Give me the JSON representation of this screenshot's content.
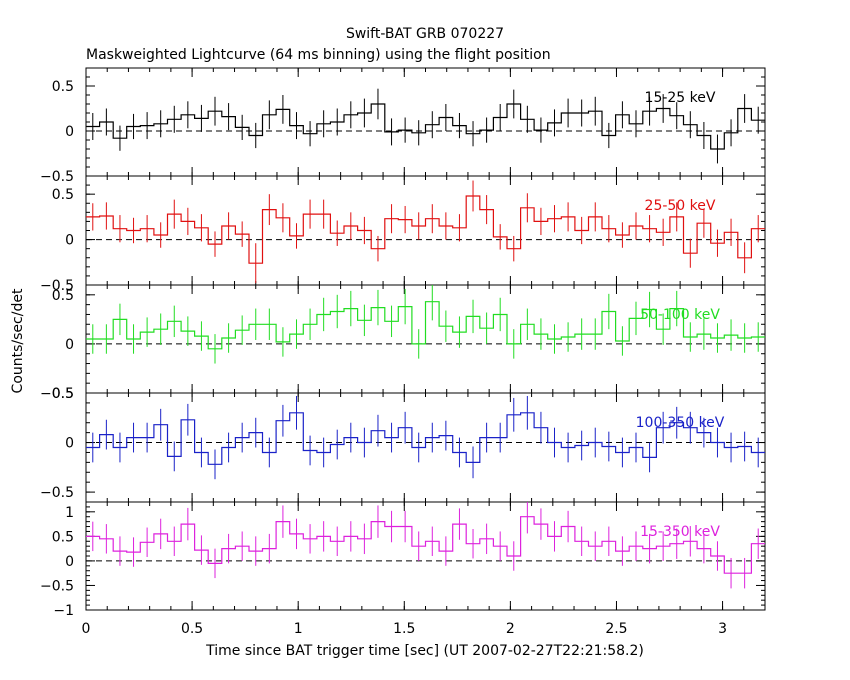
{
  "title": "Swift-BAT GRB 070227",
  "subtitle": "Maskweighted Lightcurve (64 ms binning) using the flight position",
  "xlabel": "Time since BAT trigger time [sec] (UT 2007-02-27T22:21:58.2)",
  "ylabel": "Counts/sec/det",
  "chart_data": {
    "type": "line",
    "drawstyle": "steps-mid",
    "error_bars": true,
    "x_step": 0.064,
    "xlim": [
      0,
      3.2
    ],
    "x_ticks": [
      0,
      0.5,
      1,
      1.5,
      2,
      2.5,
      3
    ],
    "x_tick_labels": [
      "0",
      "0.5",
      "1",
      "1.5",
      "2",
      "2.5",
      "3"
    ],
    "zero_line": "dashed",
    "panels": [
      {
        "name": "15-25 keV",
        "color": "#000000",
        "ylim": [
          -0.5,
          0.7
        ],
        "y_ticks": [
          -0.5,
          0,
          0.5
        ],
        "y_tick_labels": [
          "−0.5",
          "0",
          "0.5"
        ],
        "x": [
          0.032,
          0.096,
          0.16,
          0.224,
          0.288,
          0.352,
          0.416,
          0.48,
          0.544,
          0.608,
          0.672,
          0.736,
          0.8,
          0.864,
          0.928,
          0.992,
          1.056,
          1.12,
          1.184,
          1.248,
          1.312,
          1.376,
          1.44,
          1.504,
          1.568,
          1.632,
          1.696,
          1.76,
          1.824,
          1.888,
          1.952,
          2.016,
          2.08,
          2.144,
          2.208,
          2.272,
          2.336,
          2.4,
          2.464,
          2.528,
          2.592,
          2.656,
          2.72,
          2.784,
          2.848,
          2.912,
          2.976,
          3.04,
          3.104,
          3.168
        ],
        "values": [
          0.05,
          0.1,
          -0.08,
          0.05,
          0.06,
          0.08,
          0.13,
          0.18,
          0.14,
          0.22,
          0.16,
          0.04,
          -0.05,
          0.18,
          0.24,
          0.06,
          -0.03,
          0.08,
          0.1,
          0.18,
          0.2,
          0.3,
          -0.01,
          0.01,
          -0.02,
          0.07,
          0.15,
          0.06,
          -0.03,
          0.01,
          0.15,
          0.3,
          0.13,
          0.01,
          0.09,
          0.2,
          0.2,
          0.22,
          -0.05,
          0.18,
          0.08,
          0.22,
          0.25,
          0.17,
          0.07,
          -0.05,
          -0.2,
          -0.02,
          0.25,
          0.12
        ],
        "errors": [
          0.15,
          0.15,
          0.14,
          0.14,
          0.15,
          0.15,
          0.15,
          0.15,
          0.15,
          0.16,
          0.15,
          0.14,
          0.14,
          0.16,
          0.16,
          0.15,
          0.14,
          0.15,
          0.15,
          0.15,
          0.16,
          0.17,
          0.15,
          0.14,
          0.14,
          0.15,
          0.15,
          0.14,
          0.14,
          0.14,
          0.15,
          0.16,
          0.15,
          0.14,
          0.15,
          0.16,
          0.15,
          0.16,
          0.14,
          0.15,
          0.15,
          0.16,
          0.16,
          0.15,
          0.15,
          0.15,
          0.16,
          0.15,
          0.16,
          0.15
        ]
      },
      {
        "name": "25-50 keV",
        "color": "#e01010",
        "ylim": [
          -0.5,
          0.7
        ],
        "y_ticks": [
          -0.5,
          0,
          0.5
        ],
        "y_tick_labels": [
          "−0.5",
          "0",
          "0.5"
        ],
        "x": [
          0.032,
          0.096,
          0.16,
          0.224,
          0.288,
          0.352,
          0.416,
          0.48,
          0.544,
          0.608,
          0.672,
          0.736,
          0.8,
          0.864,
          0.928,
          0.992,
          1.056,
          1.12,
          1.184,
          1.248,
          1.312,
          1.376,
          1.44,
          1.504,
          1.568,
          1.632,
          1.696,
          1.76,
          1.824,
          1.888,
          1.952,
          2.016,
          2.08,
          2.144,
          2.208,
          2.272,
          2.336,
          2.4,
          2.464,
          2.528,
          2.592,
          2.656,
          2.72,
          2.784,
          2.848,
          2.912,
          2.976,
          3.04,
          3.104,
          3.168
        ],
        "values": [
          0.25,
          0.26,
          0.12,
          0.1,
          0.12,
          0.05,
          0.28,
          0.2,
          0.13,
          -0.05,
          0.15,
          0.06,
          -0.26,
          0.33,
          0.24,
          0.04,
          0.28,
          0.28,
          0.07,
          0.15,
          0.1,
          -0.1,
          0.23,
          0.22,
          0.15,
          0.23,
          0.15,
          0.13,
          0.48,
          0.33,
          0.03,
          -0.1,
          0.35,
          0.2,
          0.23,
          0.25,
          0.1,
          0.25,
          0.12,
          0.05,
          0.15,
          0.12,
          0.08,
          0.25,
          -0.15,
          0.18,
          -0.04,
          0.08,
          -0.2,
          0.12
        ],
        "errors": [
          0.15,
          0.15,
          0.15,
          0.14,
          0.15,
          0.14,
          0.16,
          0.15,
          0.15,
          0.14,
          0.15,
          0.14,
          0.22,
          0.17,
          0.16,
          0.14,
          0.16,
          0.16,
          0.14,
          0.15,
          0.15,
          0.14,
          0.16,
          0.15,
          0.15,
          0.16,
          0.15,
          0.15,
          0.17,
          0.16,
          0.14,
          0.14,
          0.16,
          0.15,
          0.15,
          0.16,
          0.15,
          0.16,
          0.15,
          0.14,
          0.15,
          0.15,
          0.15,
          0.16,
          0.16,
          0.16,
          0.15,
          0.15,
          0.17,
          0.15
        ]
      },
      {
        "name": "50-100 keV",
        "color": "#22dd22",
        "ylim": [
          -0.5,
          0.6
        ],
        "y_ticks": [
          -0.5,
          0,
          0.5
        ],
        "y_tick_labels": [
          "−0.5",
          "0",
          "0.5"
        ],
        "x": [
          0.032,
          0.096,
          0.16,
          0.224,
          0.288,
          0.352,
          0.416,
          0.48,
          0.544,
          0.608,
          0.672,
          0.736,
          0.8,
          0.864,
          0.928,
          0.992,
          1.056,
          1.12,
          1.184,
          1.248,
          1.312,
          1.376,
          1.44,
          1.504,
          1.568,
          1.632,
          1.696,
          1.76,
          1.824,
          1.888,
          1.952,
          2.016,
          2.08,
          2.144,
          2.208,
          2.272,
          2.336,
          2.4,
          2.464,
          2.528,
          2.592,
          2.656,
          2.72,
          2.784,
          2.848,
          2.912,
          2.976,
          3.04,
          3.104,
          3.168
        ],
        "values": [
          0.05,
          0.05,
          0.25,
          0.05,
          0.12,
          0.15,
          0.23,
          0.13,
          0.08,
          -0.05,
          0.06,
          0.14,
          0.2,
          0.2,
          0.02,
          0.1,
          0.2,
          0.3,
          0.33,
          0.36,
          0.24,
          0.37,
          0.23,
          0.38,
          0.0,
          0.43,
          0.18,
          0.12,
          0.28,
          0.16,
          0.3,
          0.0,
          0.2,
          0.1,
          0.05,
          0.07,
          0.1,
          0.1,
          0.33,
          0.03,
          0.26,
          0.35,
          0.15,
          0.36,
          0.07,
          0.1,
          0.06,
          0.09,
          0.06,
          0.07
        ],
        "errors": [
          0.15,
          0.15,
          0.16,
          0.15,
          0.15,
          0.16,
          0.16,
          0.15,
          0.15,
          0.15,
          0.15,
          0.15,
          0.16,
          0.16,
          0.15,
          0.15,
          0.16,
          0.17,
          0.17,
          0.18,
          0.16,
          0.18,
          0.16,
          0.18,
          0.15,
          0.19,
          0.16,
          0.16,
          0.17,
          0.16,
          0.17,
          0.15,
          0.16,
          0.16,
          0.15,
          0.15,
          0.16,
          0.16,
          0.18,
          0.15,
          0.17,
          0.18,
          0.16,
          0.18,
          0.15,
          0.16,
          0.15,
          0.16,
          0.15,
          0.15
        ]
      },
      {
        "name": "100-350 keV",
        "color": "#1a22c8",
        "ylim": [
          -0.6,
          0.5
        ],
        "y_ticks": [
          -0.5,
          0,
          0.5
        ],
        "y_tick_labels": [
          "−0.5",
          "0",
          "0.5"
        ],
        "x": [
          0.032,
          0.096,
          0.16,
          0.224,
          0.288,
          0.352,
          0.416,
          0.48,
          0.544,
          0.608,
          0.672,
          0.736,
          0.8,
          0.864,
          0.928,
          0.992,
          1.056,
          1.12,
          1.184,
          1.248,
          1.312,
          1.376,
          1.44,
          1.504,
          1.568,
          1.632,
          1.696,
          1.76,
          1.824,
          1.888,
          1.952,
          2.016,
          2.08,
          2.144,
          2.208,
          2.272,
          2.336,
          2.4,
          2.464,
          2.528,
          2.592,
          2.656,
          2.72,
          2.784,
          2.848,
          2.912,
          2.976,
          3.04,
          3.104,
          3.168
        ],
        "values": [
          -0.05,
          0.08,
          -0.05,
          0.05,
          0.05,
          0.18,
          -0.14,
          0.23,
          -0.1,
          -0.22,
          -0.05,
          0.05,
          0.1,
          -0.1,
          0.22,
          0.3,
          -0.08,
          -0.1,
          -0.02,
          0.05,
          0.0,
          0.12,
          0.05,
          0.15,
          -0.05,
          0.05,
          0.07,
          -0.1,
          -0.2,
          0.05,
          0.05,
          0.28,
          0.3,
          0.15,
          0.0,
          -0.05,
          -0.03,
          0.0,
          -0.04,
          -0.1,
          -0.05,
          -0.15,
          0.15,
          0.2,
          0.15,
          0.1,
          0.0,
          -0.05,
          -0.04,
          -0.1
        ],
        "errors": [
          0.15,
          0.15,
          0.15,
          0.15,
          0.15,
          0.16,
          0.15,
          0.16,
          0.15,
          0.15,
          0.15,
          0.15,
          0.15,
          0.15,
          0.16,
          0.17,
          0.15,
          0.15,
          0.15,
          0.15,
          0.15,
          0.16,
          0.15,
          0.16,
          0.15,
          0.15,
          0.15,
          0.15,
          0.16,
          0.15,
          0.15,
          0.17,
          0.17,
          0.16,
          0.15,
          0.15,
          0.15,
          0.15,
          0.15,
          0.15,
          0.15,
          0.15,
          0.16,
          0.16,
          0.16,
          0.15,
          0.15,
          0.15,
          0.15,
          0.15
        ]
      },
      {
        "name": "15-350 keV",
        "color": "#dd22dd",
        "ylim": [
          -1.0,
          1.2
        ],
        "y_ticks": [
          -1,
          -0.5,
          0,
          0.5,
          1
        ],
        "y_tick_labels": [
          "−1",
          "−0.5",
          "0",
          "0.5",
          "1"
        ],
        "x": [
          0.032,
          0.096,
          0.16,
          0.224,
          0.288,
          0.352,
          0.416,
          0.48,
          0.544,
          0.608,
          0.672,
          0.736,
          0.8,
          0.864,
          0.928,
          0.992,
          1.056,
          1.12,
          1.184,
          1.248,
          1.312,
          1.376,
          1.44,
          1.504,
          1.568,
          1.632,
          1.696,
          1.76,
          1.824,
          1.888,
          1.952,
          2.016,
          2.08,
          2.144,
          2.208,
          2.272,
          2.336,
          2.4,
          2.464,
          2.528,
          2.592,
          2.656,
          2.72,
          2.784,
          2.848,
          2.912,
          2.976,
          3.04,
          3.104,
          3.168
        ],
        "values": [
          0.5,
          0.45,
          0.2,
          0.18,
          0.38,
          0.55,
          0.4,
          0.75,
          0.22,
          -0.05,
          0.25,
          0.3,
          0.2,
          0.25,
          0.8,
          0.55,
          0.45,
          0.5,
          0.4,
          0.5,
          0.45,
          0.8,
          0.7,
          0.7,
          0.3,
          0.4,
          0.2,
          0.75,
          0.35,
          0.45,
          0.3,
          0.1,
          0.9,
          0.75,
          0.5,
          0.7,
          0.4,
          0.3,
          0.4,
          0.2,
          0.3,
          0.25,
          0.3,
          0.35,
          0.4,
          0.25,
          0.1,
          -0.25,
          -0.25,
          0.35
        ],
        "errors": [
          0.3,
          0.3,
          0.3,
          0.3,
          0.3,
          0.31,
          0.3,
          0.33,
          0.3,
          0.3,
          0.3,
          0.3,
          0.3,
          0.3,
          0.33,
          0.31,
          0.3,
          0.31,
          0.3,
          0.31,
          0.31,
          0.33,
          0.32,
          0.32,
          0.3,
          0.3,
          0.3,
          0.32,
          0.3,
          0.31,
          0.3,
          0.3,
          0.34,
          0.32,
          0.31,
          0.32,
          0.3,
          0.3,
          0.3,
          0.3,
          0.3,
          0.3,
          0.3,
          0.31,
          0.31,
          0.3,
          0.3,
          0.31,
          0.31,
          0.31
        ]
      }
    ]
  }
}
